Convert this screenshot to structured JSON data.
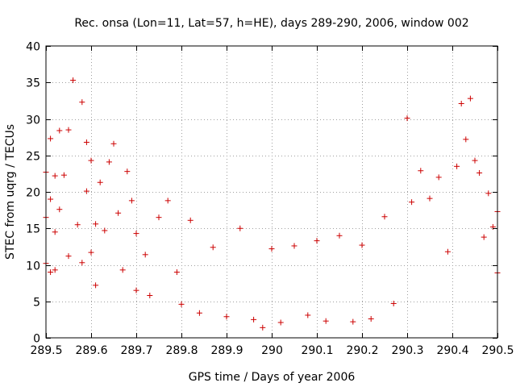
{
  "chart_data": {
    "type": "scatter",
    "title": "Rec. onsa (Lon=11, Lat=57, h=HE), days 289-290, 2006, window 002",
    "xlabel": "GPS time / Days of year 2006",
    "ylabel": "STEC from uqrg / TECUs",
    "xlim": [
      289.5,
      290.5
    ],
    "ylim": [
      0,
      40
    ],
    "xticks": [
      289.5,
      289.6,
      289.7,
      289.8,
      289.9,
      290,
      290.1,
      290.2,
      290.3,
      290.4,
      290.5
    ],
    "xtick_labels": [
      "289.5",
      "289.6",
      "289.7",
      "289.8",
      "289.9",
      "290",
      "290.1",
      "290.2",
      "290.3",
      "290.4",
      "290.5"
    ],
    "yticks": [
      0,
      5,
      10,
      15,
      20,
      25,
      30,
      35,
      40
    ],
    "ytick_labels": [
      "0",
      "5",
      "10",
      "15",
      "20",
      "25",
      "30",
      "35",
      "40"
    ],
    "grid": true,
    "marker": "+",
    "color": "#cc0000",
    "series": [
      {
        "name": "STEC",
        "x": [
          289.5,
          289.5,
          289.5,
          289.51,
          289.51,
          289.51,
          289.52,
          289.52,
          289.52,
          289.53,
          289.53,
          289.54,
          289.55,
          289.55,
          289.56,
          289.57,
          289.58,
          289.58,
          289.59,
          289.59,
          289.6,
          289.6,
          289.61,
          289.61,
          289.62,
          289.63,
          289.64,
          289.65,
          289.66,
          289.67,
          289.68,
          289.69,
          289.7,
          289.7,
          289.72,
          289.73,
          289.75,
          289.77,
          289.79,
          289.8,
          289.82,
          289.84,
          289.87,
          289.9,
          289.93,
          289.96,
          289.98,
          290.0,
          290.02,
          290.05,
          290.08,
          290.1,
          290.12,
          290.15,
          290.18,
          290.2,
          290.22,
          290.25,
          290.27,
          290.3,
          290.31,
          290.33,
          290.35,
          290.37,
          290.39,
          290.41,
          290.42,
          290.43,
          290.44,
          290.45,
          290.46,
          290.47,
          290.48,
          290.49,
          290.5,
          290.5
        ],
        "y": [
          22.7,
          16.5,
          10.2,
          27.3,
          19.0,
          9.0,
          22.2,
          14.5,
          9.3,
          28.4,
          17.6,
          22.3,
          28.5,
          11.2,
          35.3,
          15.5,
          32.3,
          10.3,
          26.8,
          20.1,
          24.3,
          11.7,
          15.6,
          7.2,
          21.3,
          14.7,
          24.1,
          26.6,
          17.1,
          9.3,
          22.8,
          18.8,
          14.3,
          6.5,
          11.4,
          5.8,
          16.5,
          18.8,
          9.0,
          4.6,
          16.1,
          3.4,
          12.4,
          2.9,
          15.0,
          2.5,
          1.4,
          12.2,
          2.1,
          12.6,
          3.1,
          13.3,
          2.3,
          14.0,
          2.2,
          12.7,
          2.6,
          16.6,
          4.7,
          30.1,
          18.6,
          22.9,
          19.1,
          22.0,
          11.8,
          23.5,
          32.1,
          27.2,
          32.8,
          24.3,
          22.6,
          13.8,
          19.8,
          15.2,
          17.3,
          8.9
        ]
      }
    ]
  }
}
